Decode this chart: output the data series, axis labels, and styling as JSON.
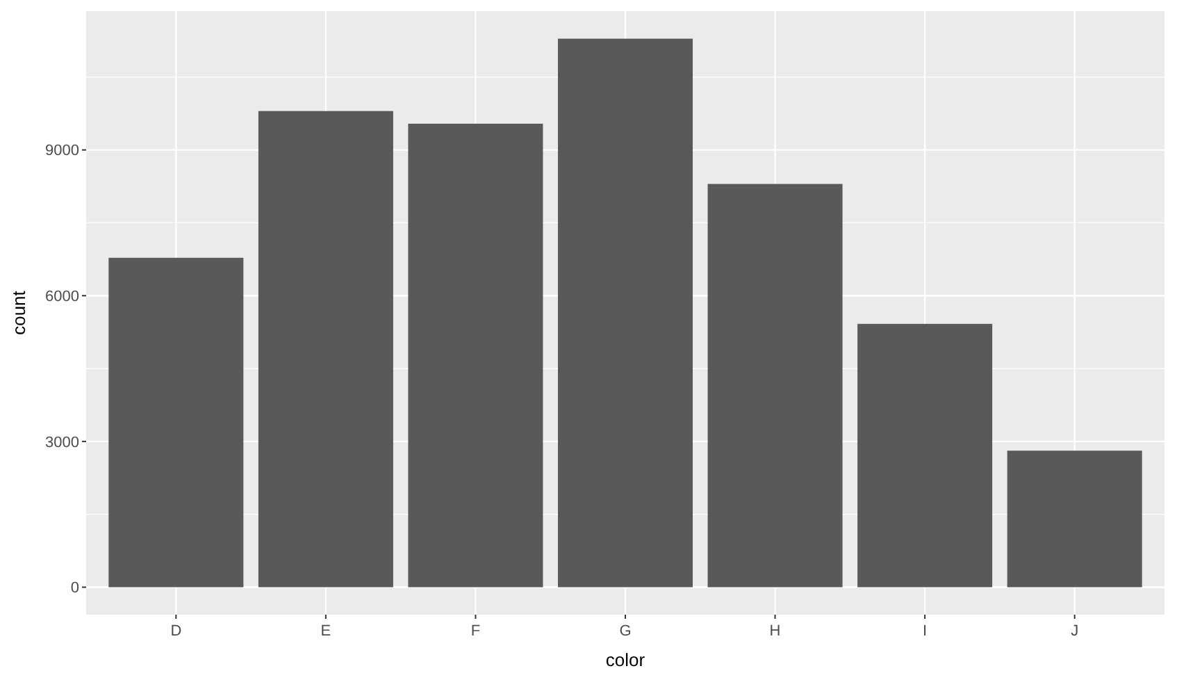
{
  "chart_data": {
    "type": "bar",
    "xlabel": "color",
    "ylabel": "count",
    "categories": [
      "D",
      "E",
      "F",
      "G",
      "H",
      "I",
      "J"
    ],
    "values": [
      6780,
      9800,
      9540,
      11290,
      8300,
      5420,
      2810
    ],
    "color": "#595959",
    "ylim": [
      -565,
      11857
    ],
    "yticks": [
      0,
      3000,
      6000,
      9000
    ],
    "grid": true
  }
}
